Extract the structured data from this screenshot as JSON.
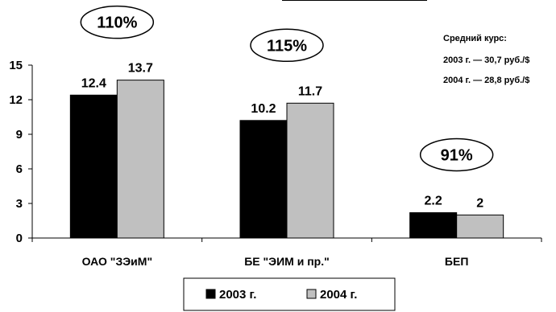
{
  "chart_data": {
    "type": "bar",
    "categories": [
      "ОАО \"ЗЭиМ\"",
      "БЕ \"ЭИМ и пр.\"",
      "БЕП"
    ],
    "series": [
      {
        "name": "2003 г.",
        "values": [
          12.4,
          10.2,
          2.2
        ],
        "labels": [
          "12.4",
          "10.2",
          "2.2"
        ],
        "color": "#000000"
      },
      {
        "name": "2004 г.",
        "values": [
          13.7,
          11.7,
          2.0
        ],
        "labels": [
          "13.7",
          "11.7",
          "2"
        ],
        "color": "#c0c0c0"
      }
    ],
    "ylim": [
      0,
      15
    ],
    "yticks": [
      "0",
      "3",
      "6",
      "9",
      "12",
      "15"
    ],
    "growth_labels": [
      "110%",
      "115%",
      "91%"
    ],
    "legend_position": "bottom",
    "grid": false
  },
  "note": {
    "title": "Средний курс:",
    "line1": "2003 г. — 30,7 руб./$",
    "line2": "2004 г. — 28,8 руб./$"
  }
}
